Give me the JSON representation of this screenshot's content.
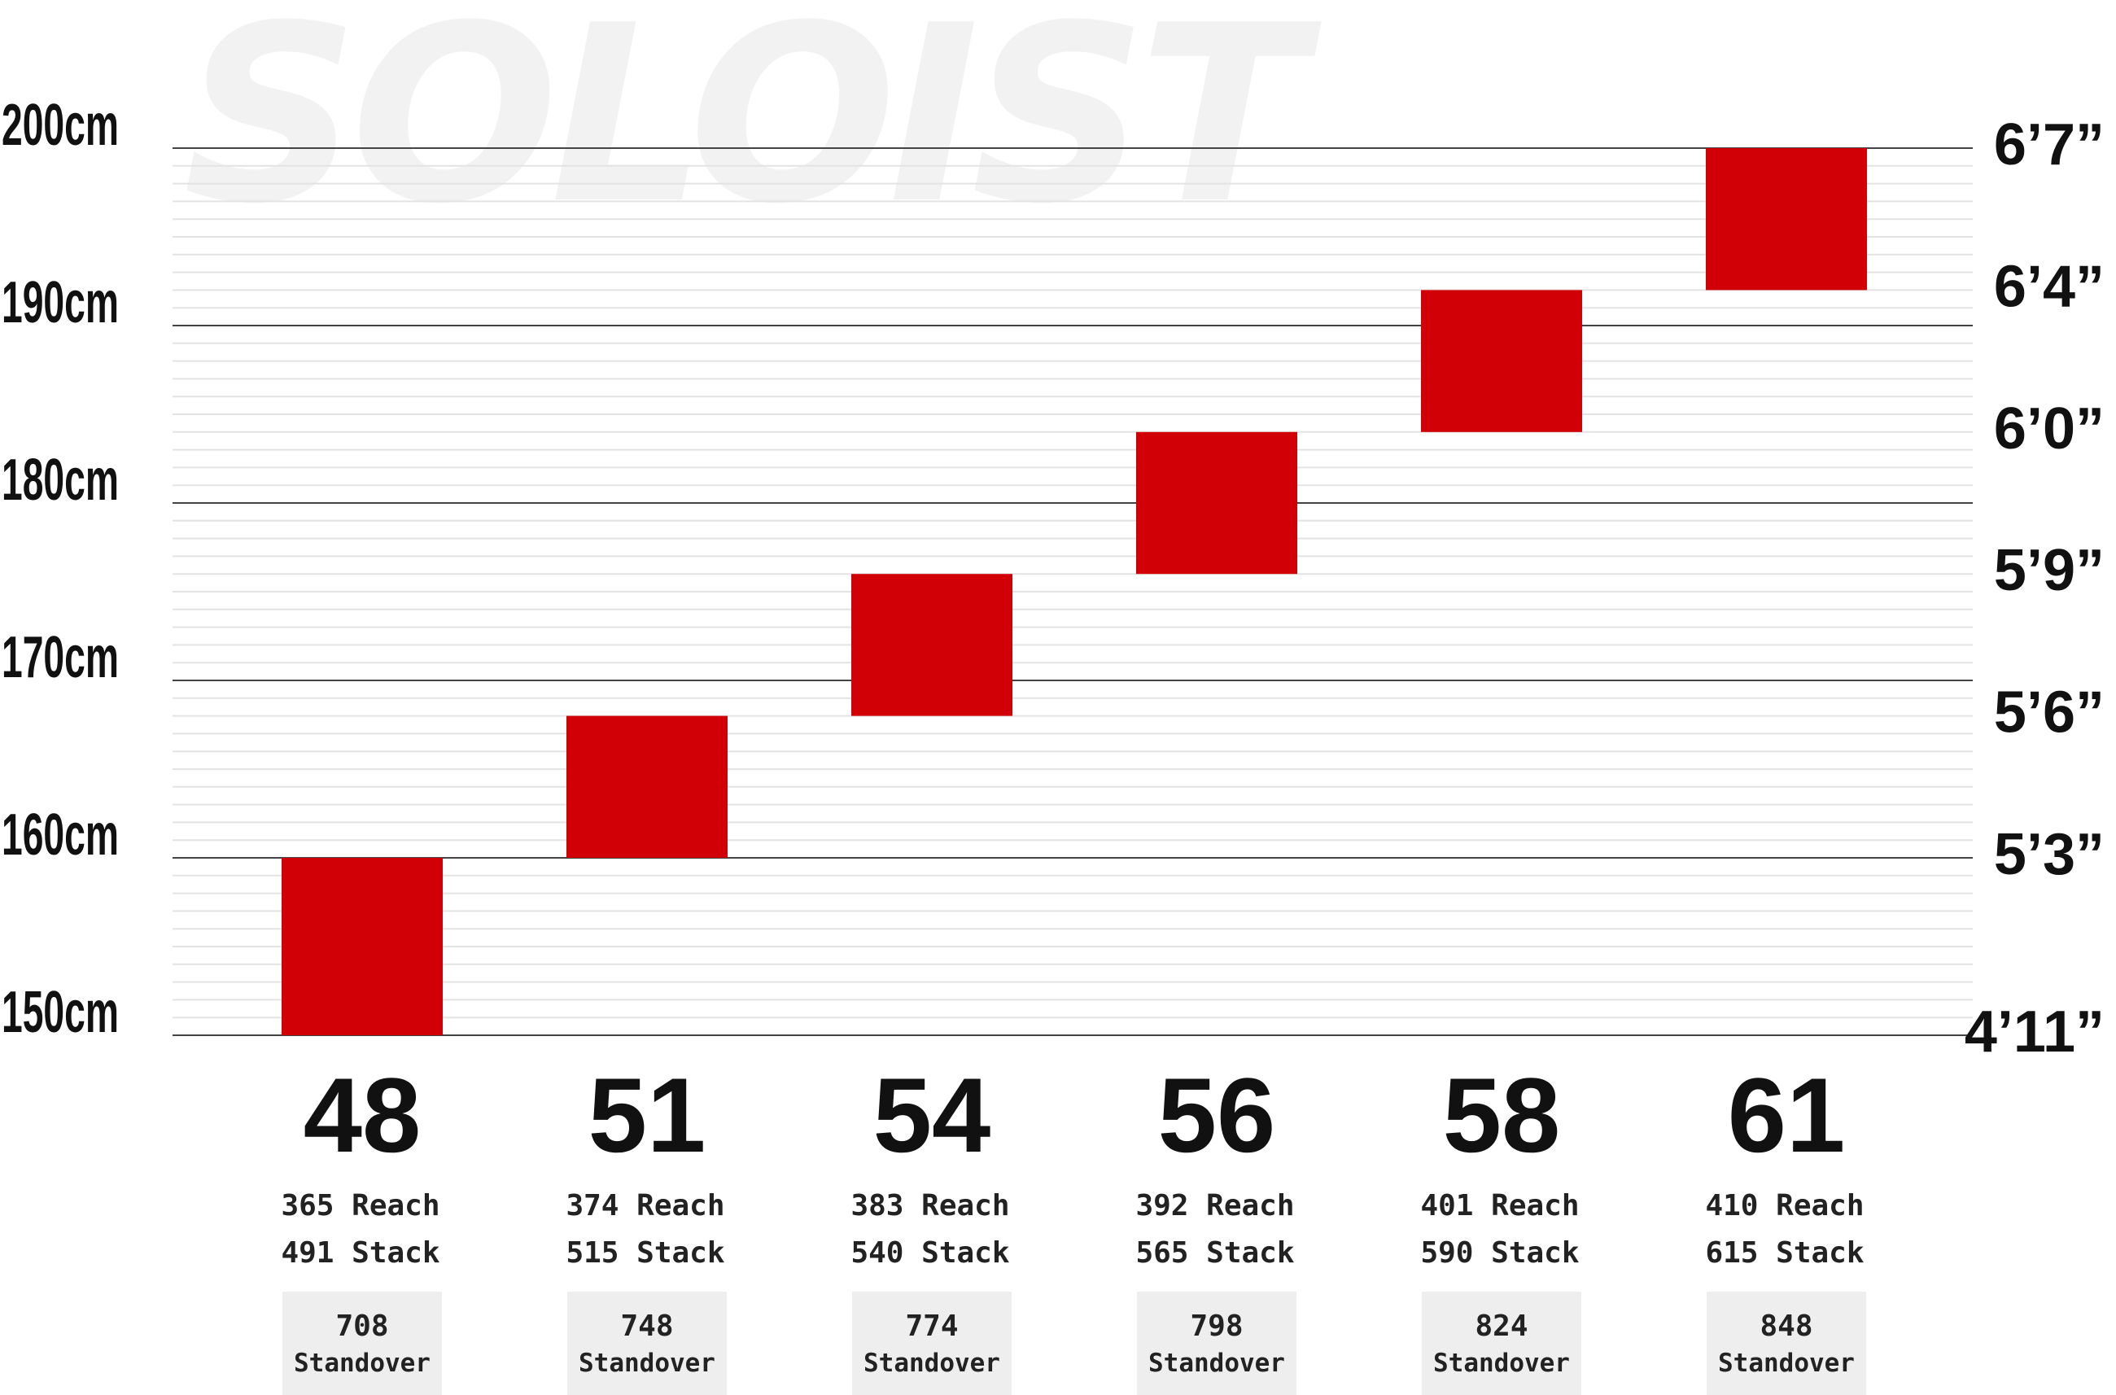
{
  "watermark": "SOLOIST",
  "chart_data": {
    "type": "bar",
    "subtype": "floating-range",
    "y_unit": "cm",
    "ylim": [
      150,
      200
    ],
    "grid": true,
    "left_ticks": [
      {
        "value": 200,
        "label": "200cm"
      },
      {
        "value": 190,
        "label": "190cm"
      },
      {
        "value": 180,
        "label": "180cm"
      },
      {
        "value": 170,
        "label": "170cm"
      },
      {
        "value": 160,
        "label": "160cm"
      },
      {
        "value": 150,
        "label": "150cm"
      }
    ],
    "right_ticks": [
      {
        "value": 200,
        "label": "6’7”"
      },
      {
        "value": 192,
        "label": "6’4”"
      },
      {
        "value": 184,
        "label": "6’0”"
      },
      {
        "value": 176,
        "label": "5’9”"
      },
      {
        "value": 168,
        "label": "5’6”"
      },
      {
        "value": 160,
        "label": "5’3”"
      },
      {
        "value": 150,
        "label": "4’11”"
      }
    ],
    "color": "#d10007",
    "sizes": [
      {
        "size": "48",
        "low": 150,
        "high": 160,
        "reach": "365 Reach",
        "stack": "491 Stack",
        "standover": "708",
        "standover_label": "Standover"
      },
      {
        "size": "51",
        "low": 160,
        "high": 168,
        "reach": "374 Reach",
        "stack": "515 Stack",
        "standover": "748",
        "standover_label": "Standover"
      },
      {
        "size": "54",
        "low": 168,
        "high": 176,
        "reach": "383 Reach",
        "stack": "540 Stack",
        "standover": "774",
        "standover_label": "Standover"
      },
      {
        "size": "56",
        "low": 176,
        "high": 184,
        "reach": "392 Reach",
        "stack": "565 Stack",
        "standover": "798",
        "standover_label": "Standover"
      },
      {
        "size": "58",
        "low": 184,
        "high": 192,
        "reach": "401 Reach",
        "stack": "590 Stack",
        "standover": "824",
        "standover_label": "Standover"
      },
      {
        "size": "61",
        "low": 192,
        "high": 200,
        "reach": "410 Reach",
        "stack": "615 Stack",
        "standover": "848",
        "standover_label": "Standover"
      }
    ]
  }
}
